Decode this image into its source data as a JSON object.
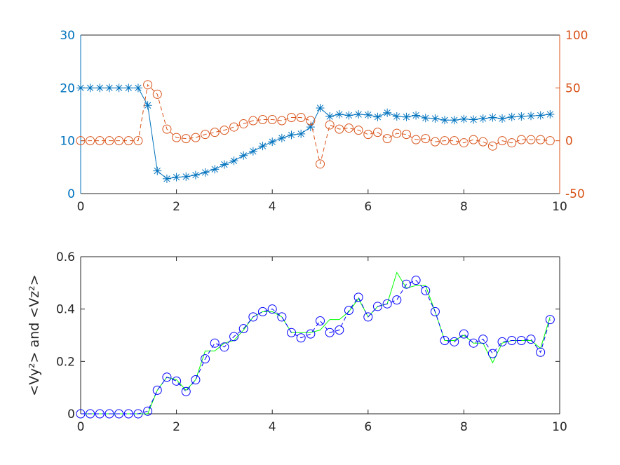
{
  "chart_data": [
    {
      "type": "line",
      "x": [
        0,
        0.2,
        0.4,
        0.6,
        0.8,
        1,
        1.2,
        1.4,
        1.6,
        1.8,
        2,
        2.2,
        2.4,
        2.6,
        2.8,
        3,
        3.2,
        3.4,
        3.6,
        3.8,
        4,
        4.2,
        4.4,
        4.6,
        4.8,
        5,
        5.2,
        5.4,
        5.6,
        5.8,
        6,
        6.2,
        6.4,
        6.6,
        6.8,
        7,
        7.2,
        7.4,
        7.6,
        7.8,
        8,
        8.2,
        8.4,
        8.6,
        8.8,
        9,
        9.2,
        9.4,
        9.6,
        9.8
      ],
      "xlim": [
        0,
        10
      ],
      "xticks": [
        0,
        2,
        4,
        6,
        8,
        10
      ],
      "ylim": [
        0,
        30
      ],
      "yticks": [
        0,
        10,
        20,
        30
      ],
      "y2lim": [
        -50,
        100
      ],
      "y2ticks": [
        -50,
        0,
        50,
        100
      ],
      "series": [
        {
          "color": "#0072bd",
          "marker": "star",
          "dashed": false,
          "values": [
            20,
            20,
            20,
            20,
            20,
            20,
            20,
            16.7,
            4.3,
            2.8,
            3.1,
            3.2,
            3.5,
            4.0,
            4.6,
            5.5,
            6.2,
            7.2,
            8.0,
            9.0,
            9.8,
            10.5,
            11.1,
            11.3,
            12.6,
            16.2,
            14.6,
            15.0,
            14.8,
            15.0,
            14.9,
            14.5,
            15.3,
            14.6,
            14.5,
            14.8,
            14.3,
            14.2,
            13.9,
            13.9,
            14.1,
            14.0,
            14.2,
            14.4,
            14.2,
            14.5,
            14.6,
            14.7,
            14.8,
            15.0
          ]
        },
        {
          "color": "#d95319",
          "marker": "circle",
          "dashed": true,
          "axis": "y2",
          "values": [
            0,
            0,
            0,
            0,
            0,
            0,
            0,
            53,
            44,
            11,
            3,
            2,
            3,
            6,
            8,
            10,
            13,
            16,
            19,
            20,
            20,
            19,
            22,
            22,
            19,
            -22,
            15,
            11,
            12,
            10,
            6,
            8,
            2,
            7,
            6,
            1,
            2,
            -1,
            0,
            0,
            -2,
            1,
            -1,
            -5,
            0,
            -2,
            1,
            1,
            1,
            0
          ]
        }
      ]
    },
    {
      "type": "line",
      "ylabel": "<Vy²> and <Vz²>",
      "x": [
        0,
        0.2,
        0.4,
        0.6,
        0.8,
        1,
        1.2,
        1.4,
        1.6,
        1.8,
        2,
        2.2,
        2.4,
        2.6,
        2.8,
        3,
        3.2,
        3.4,
        3.6,
        3.8,
        4,
        4.2,
        4.4,
        4.6,
        4.8,
        5,
        5.2,
        5.4,
        5.6,
        5.8,
        6,
        6.2,
        6.4,
        6.6,
        6.8,
        7,
        7.2,
        7.4,
        7.6,
        7.8,
        8,
        8.2,
        8.4,
        8.6,
        8.8,
        9,
        9.2,
        9.4,
        9.6,
        9.8
      ],
      "xlim": [
        0,
        10
      ],
      "xticks": [
        0,
        2,
        4,
        6,
        8,
        10
      ],
      "ylim": [
        0,
        0.6
      ],
      "yticks": [
        0,
        0.2,
        0.4,
        0.6
      ],
      "series": [
        {
          "color": "#00ff00",
          "marker": "none",
          "dashed": false,
          "values": [
            0,
            0,
            0,
            0,
            0,
            0,
            0,
            0,
            0.09,
            0.14,
            0.13,
            0.09,
            0.13,
            0.24,
            0.24,
            0.27,
            0.28,
            0.32,
            0.37,
            0.39,
            0.39,
            0.37,
            0.31,
            0.31,
            0.31,
            0.32,
            0.36,
            0.36,
            0.39,
            0.44,
            0.37,
            0.41,
            0.42,
            0.54,
            0.48,
            0.49,
            0.49,
            0.39,
            0.28,
            0.28,
            0.3,
            0.27,
            0.27,
            0.195,
            0.27,
            0.28,
            0.28,
            0.28,
            0.25,
            0.37
          ]
        },
        {
          "color": "#0000ff",
          "marker": "circle",
          "dashed": true,
          "values": [
            0,
            0,
            0,
            0,
            0,
            0,
            0,
            0.01,
            0.09,
            0.14,
            0.125,
            0.085,
            0.13,
            0.21,
            0.27,
            0.255,
            0.295,
            0.325,
            0.37,
            0.39,
            0.4,
            0.37,
            0.31,
            0.29,
            0.305,
            0.355,
            0.31,
            0.32,
            0.395,
            0.445,
            0.37,
            0.41,
            0.42,
            0.435,
            0.495,
            0.51,
            0.47,
            0.39,
            0.28,
            0.275,
            0.305,
            0.27,
            0.285,
            0.23,
            0.275,
            0.28,
            0.28,
            0.285,
            0.235,
            0.36
          ]
        }
      ]
    }
  ]
}
